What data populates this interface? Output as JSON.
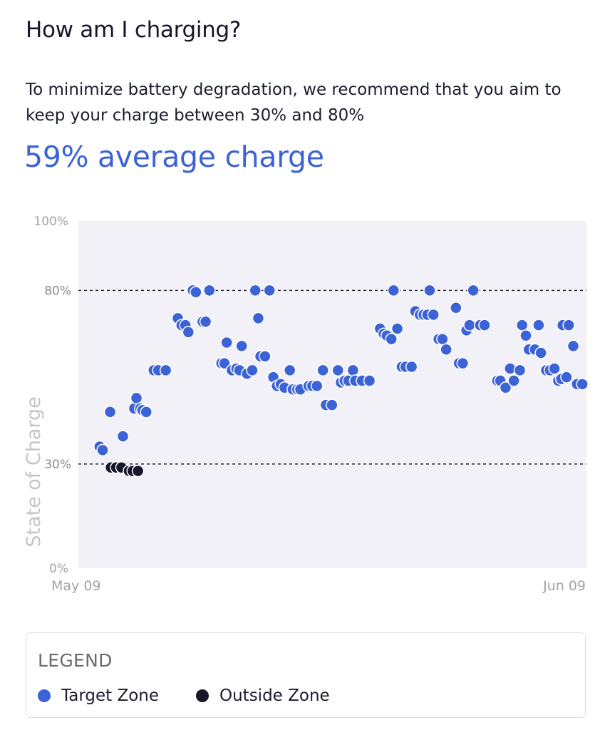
{
  "header": {
    "title": "How am I charging?",
    "description": "To minimize battery degradation, we recommend that you aim to keep your charge between 30% and 80%",
    "average": "59% average charge"
  },
  "colors": {
    "accent": "#3c63d6",
    "target": "#3c63d6",
    "outside": "#16172a",
    "plot_bg": "#f1f1f7"
  },
  "chart_data": {
    "type": "scatter",
    "ylabel": "State of Charge",
    "ylim": [
      0,
      100
    ],
    "y_ticks": [
      "0%",
      "30%",
      "80%",
      "100%"
    ],
    "x_tick_labels": [
      "May 09",
      "Jun 09"
    ],
    "x_range_days": [
      0,
      31
    ],
    "reference_lines": [
      30,
      80
    ],
    "grid": false,
    "series": [
      {
        "name": "Target Zone",
        "color": "#3c63d6",
        "points": [
          [
            0.75,
            35
          ],
          [
            0.95,
            34
          ],
          [
            1.45,
            45
          ],
          [
            2.3,
            38
          ],
          [
            3.05,
            46
          ],
          [
            3.2,
            49
          ],
          [
            3.45,
            46
          ],
          [
            3.6,
            45.5
          ],
          [
            3.85,
            45
          ],
          [
            4.35,
            57
          ],
          [
            4.65,
            57
          ],
          [
            5.15,
            57
          ],
          [
            5.95,
            72
          ],
          [
            6.2,
            70
          ],
          [
            6.45,
            70
          ],
          [
            6.65,
            68
          ],
          [
            6.95,
            80
          ],
          [
            7.15,
            79.5
          ],
          [
            7.6,
            71
          ],
          [
            7.8,
            71
          ],
          [
            8.05,
            80
          ],
          [
            8.85,
            59
          ],
          [
            9.05,
            59
          ],
          [
            9.2,
            65
          ],
          [
            9.55,
            57
          ],
          [
            9.85,
            57.5
          ],
          [
            10.05,
            57
          ],
          [
            10.2,
            64
          ],
          [
            10.55,
            56
          ],
          [
            10.9,
            57
          ],
          [
            11.1,
            80
          ],
          [
            11.3,
            72
          ],
          [
            11.45,
            61
          ],
          [
            11.75,
            61
          ],
          [
            12.05,
            80
          ],
          [
            12.3,
            55
          ],
          [
            12.55,
            52.5
          ],
          [
            12.8,
            53
          ],
          [
            13.05,
            52
          ],
          [
            13.4,
            57
          ],
          [
            13.6,
            51.5
          ],
          [
            13.9,
            51.5
          ],
          [
            14.1,
            51.5
          ],
          [
            14.65,
            52.5
          ],
          [
            14.9,
            52.5
          ],
          [
            15.2,
            52.5
          ],
          [
            15.6,
            57
          ],
          [
            15.8,
            47
          ],
          [
            16.2,
            47
          ],
          [
            16.6,
            57
          ],
          [
            16.8,
            53.5
          ],
          [
            17.05,
            54
          ],
          [
            17.3,
            54
          ],
          [
            17.6,
            57
          ],
          [
            17.75,
            54
          ],
          [
            18.2,
            54
          ],
          [
            18.7,
            54
          ],
          [
            19.4,
            69
          ],
          [
            19.65,
            67.5
          ],
          [
            19.85,
            67
          ],
          [
            20.15,
            66
          ],
          [
            20.3,
            80
          ],
          [
            20.55,
            69
          ],
          [
            20.85,
            58
          ],
          [
            21.1,
            58
          ],
          [
            21.5,
            58
          ],
          [
            21.75,
            74
          ],
          [
            22.05,
            73
          ],
          [
            22.3,
            73
          ],
          [
            22.55,
            73
          ],
          [
            22.7,
            80
          ],
          [
            22.95,
            73
          ],
          [
            23.3,
            66
          ],
          [
            23.55,
            66
          ],
          [
            23.8,
            63
          ],
          [
            24.45,
            75
          ],
          [
            24.65,
            59
          ],
          [
            24.9,
            59
          ],
          [
            25.15,
            68.5
          ],
          [
            25.35,
            70
          ],
          [
            25.6,
            80
          ],
          [
            26.05,
            70
          ],
          [
            26.35,
            70
          ],
          [
            27.2,
            54
          ],
          [
            27.4,
            54
          ],
          [
            27.75,
            52
          ],
          [
            28.05,
            57.5
          ],
          [
            28.3,
            54
          ],
          [
            28.7,
            57
          ],
          [
            28.85,
            70
          ],
          [
            29.1,
            67
          ],
          [
            29.3,
            63
          ],
          [
            29.7,
            63
          ],
          [
            29.95,
            70
          ],
          [
            30.1,
            62
          ],
          [
            30.45,
            57
          ],
          [
            30.7,
            57
          ],
          [
            31.0,
            57.5
          ],
          [
            31.25,
            54
          ],
          [
            31.45,
            54.5
          ],
          [
            31.55,
            70
          ],
          [
            31.8,
            55
          ],
          [
            31.95,
            70
          ],
          [
            32.25,
            64
          ],
          [
            32.5,
            53
          ],
          [
            32.85,
            53
          ]
        ]
      },
      {
        "name": "Outside Zone",
        "color": "#16172a",
        "points": [
          [
            1.5,
            29
          ],
          [
            1.85,
            29
          ],
          [
            2.2,
            29
          ],
          [
            2.7,
            28
          ],
          [
            2.95,
            28
          ],
          [
            3.3,
            28
          ]
        ]
      }
    ]
  },
  "legend": {
    "title": "LEGEND",
    "items": [
      {
        "label": "Target Zone",
        "color": "#3c63d6"
      },
      {
        "label": "Outside Zone",
        "color": "#16172a"
      }
    ]
  }
}
